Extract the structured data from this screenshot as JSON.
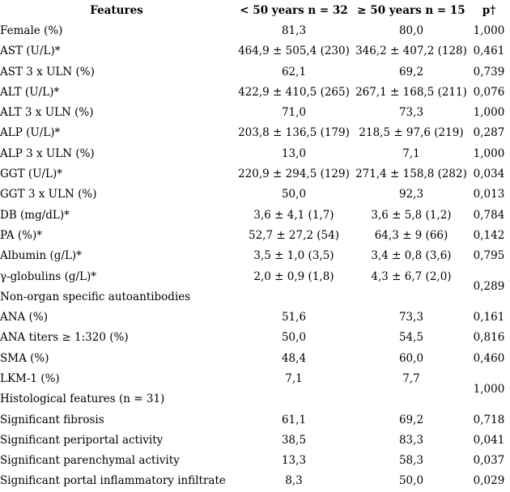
{
  "table": {
    "headers": {
      "features": "Features",
      "group1": "< 50 years n = 32",
      "group2": "≥ 50 years n = 15",
      "p": "p†"
    },
    "rows": [
      {
        "feature": "Female (%)",
        "group1": "81,3",
        "group2": "80,0",
        "p": "1,000"
      },
      {
        "feature": "AST (U/L)*",
        "group1": "464,9 ± 505,4 (230)",
        "group2": "346,2 ± 407,2 (128)",
        "p": "0,461"
      },
      {
        "feature": "AST 3 x ULN (%)",
        "group1": "62,1",
        "group2": "69,2",
        "p": "0,739"
      },
      {
        "feature": "ALT (U/L)*",
        "group1": "422,9 ± 410,5 (265)",
        "group2": "267,1 ± 168,5 (211)",
        "p": "0,076"
      },
      {
        "feature": "ALT 3 x ULN (%)",
        "group1": "71,0",
        "group2": "73,3",
        "p": "1,000"
      },
      {
        "feature": "ALP (U/L)*",
        "group1": "203,8 ± 136,5 (179)",
        "group2": "218,5 ± 97,6 (219)",
        "p": "0,287"
      },
      {
        "feature": "ALP 3 x ULN (%)",
        "group1": "13,0",
        "group2": "7,1",
        "p": "1,000"
      },
      {
        "feature": "GGT (U/L)*",
        "group1": "220,9 ± 294,5 (129)",
        "group2": "271,4 ± 158,8 (282)",
        "p": "0,034"
      },
      {
        "feature": "GGT 3 x ULN (%)",
        "group1": "50,0",
        "group2": "92,3",
        "p": "0,013"
      },
      {
        "feature": "DB (mg/dL)*",
        "group1": "3,6 ± 4,1 (1,7)",
        "group2": "3,6 ± 5,8 (1,2)",
        "p": "0,784"
      },
      {
        "feature": "PA (%)*",
        "group1": "52,7 ± 27,2 (54)",
        "group2": "64,3 ± 9 (66)",
        "p": "0,142"
      },
      {
        "feature": "Albumin (g/L)*",
        "group1": "3,5 ± 1,0 (3,5)",
        "group2": "3,4 ± 0,8 (3,6)",
        "p": "0,795"
      },
      {
        "feature": "γ-globulins (g/L)*",
        "group1": "2,0 ± 0,9 (1,8)",
        "group2": "4,3 ± 6,7 (2,0)",
        "p": "0,289",
        "p_rowspan": 2
      },
      {
        "feature": "Non-organ specific autoantibodies",
        "group1": "",
        "group2": "",
        "p_merged_above": true,
        "section": true
      },
      {
        "feature": "ANA (%)",
        "group1": "51,6",
        "group2": "73,3",
        "p": "0,161"
      },
      {
        "feature": "ANA titers ≥ 1:320 (%)",
        "group1": "50,0",
        "group2": "54,5",
        "p": "0,816"
      },
      {
        "feature": "SMA (%)",
        "group1": "48,4",
        "group2": "60,0",
        "p": "0,460"
      },
      {
        "feature": "LKM-1 (%)",
        "group1": "7,1",
        "group2": "7,7",
        "p": "1,000",
        "p_rowspan": 2
      },
      {
        "feature": "Histological features (n = 31)",
        "group1": "",
        "group2": "",
        "p_merged_above": true,
        "section": true
      },
      {
        "feature": "Significant fibrosis",
        "group1": "61,1",
        "group2": "69,2",
        "p": "0,718"
      },
      {
        "feature": "Significant periportal activity",
        "group1": "38,5",
        "group2": "83,3",
        "p": "0,041"
      },
      {
        "feature": "Significant parenchymal activity",
        "group1": "13,3",
        "group2": "58,3",
        "p": "0,037"
      },
      {
        "feature": "Significant portal inflammatory infiltrate",
        "group1": "8,3",
        "group2": "50,0",
        "p": "0,029"
      }
    ]
  }
}
